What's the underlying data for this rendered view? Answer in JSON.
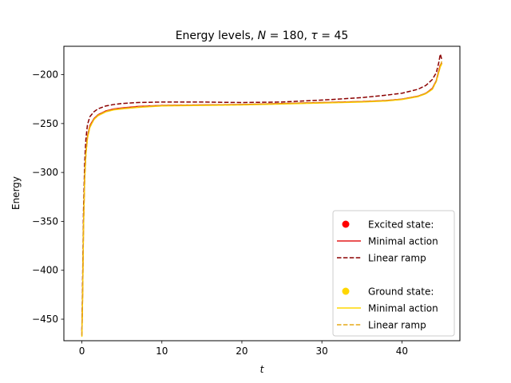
{
  "chart_data": {
    "type": "line",
    "title": "Energy levels, N = 180, τ = 45",
    "title_parts": {
      "prefix": "Energy levels, ",
      "n_sym": "N",
      "n_val": " = 180, ",
      "tau_sym": "τ",
      "tau_val": " = 45"
    },
    "xlabel": "t",
    "ylabel": "Energy",
    "xlim": [
      -2.25,
      47.25
    ],
    "ylim": [
      -472,
      -171
    ],
    "xticks": [
      0,
      10,
      20,
      30,
      40
    ],
    "yticks": [
      -450,
      -400,
      -350,
      -300,
      -250,
      -200
    ],
    "grid": false,
    "legend_position": "lower-right",
    "legend": [
      {
        "kind": "marker",
        "label": "Excited state:",
        "color": "#ff0000"
      },
      {
        "kind": "solid",
        "label": "Minimal action",
        "color": "#e31a1c"
      },
      {
        "kind": "dashed",
        "label": "Linear ramp",
        "color": "#8b0000"
      },
      {
        "kind": "gap",
        "label": ""
      },
      {
        "kind": "marker",
        "label": "Ground state:",
        "color": "#ffd700"
      },
      {
        "kind": "solid",
        "label": "Minimal action",
        "color": "#ffd700"
      },
      {
        "kind": "dashed",
        "label": "Linear ramp",
        "color": "#e6a817"
      }
    ],
    "series": [
      {
        "group": "excited",
        "label": "Minimal action",
        "color": "#e31a1c",
        "style": "solid",
        "x": [
          0,
          0.1,
          0.2,
          0.35,
          0.5,
          0.7,
          1,
          1.5,
          2,
          3,
          4,
          5,
          7,
          10,
          15,
          20,
          25,
          30,
          35,
          38,
          40,
          42,
          43,
          43.8,
          44.3,
          44.6,
          44.8,
          45
        ],
        "y": [
          -466,
          -420,
          -355,
          -305,
          -280,
          -263,
          -252,
          -245,
          -241,
          -237,
          -235,
          -234,
          -232.5,
          -231.5,
          -231,
          -230.5,
          -229.5,
          -228.5,
          -227.5,
          -226.5,
          -225,
          -222,
          -219,
          -214,
          -206,
          -196,
          -190,
          -188
        ]
      },
      {
        "group": "excited",
        "label": "Linear ramp",
        "color": "#8b0000",
        "style": "dashed",
        "x": [
          0,
          0.1,
          0.2,
          0.35,
          0.5,
          0.7,
          1,
          1.5,
          2,
          3,
          4,
          5,
          7,
          10,
          15,
          20,
          25,
          30,
          35,
          38,
          40,
          42,
          43,
          43.8,
          44.3,
          44.6,
          44.8,
          45
        ],
        "y": [
          -462,
          -405,
          -340,
          -290,
          -266,
          -251,
          -243,
          -238,
          -235,
          -232,
          -230.5,
          -229.5,
          -228.5,
          -228,
          -228,
          -228.5,
          -228,
          -226,
          -223.5,
          -221,
          -219,
          -215,
          -211,
          -205,
          -198,
          -188,
          -179,
          -185
        ]
      },
      {
        "group": "ground",
        "label": "Minimal action",
        "color": "#ffd700",
        "style": "solid",
        "x": [
          0,
          0.1,
          0.2,
          0.35,
          0.5,
          0.7,
          1,
          1.5,
          2,
          3,
          4,
          5,
          7,
          10,
          15,
          20,
          25,
          30,
          35,
          38,
          40,
          42,
          43,
          43.8,
          44.3,
          44.6,
          44.8,
          45
        ],
        "y": [
          -468,
          -422,
          -357,
          -307,
          -282,
          -265,
          -254,
          -246,
          -242,
          -238,
          -236,
          -235,
          -233.5,
          -232,
          -231.5,
          -231,
          -230,
          -229,
          -228,
          -227,
          -225.5,
          -222.5,
          -219.5,
          -215,
          -207,
          -198,
          -192,
          -189
        ]
      },
      {
        "group": "ground",
        "label": "Linear ramp",
        "color": "#e6a817",
        "style": "dashed",
        "x": [
          0,
          0.1,
          0.2,
          0.35,
          0.5,
          0.7,
          1,
          1.5,
          2,
          3,
          4,
          5,
          7,
          10,
          15,
          20,
          25,
          30,
          35,
          38,
          40,
          42,
          43,
          43.8,
          44.3,
          44.6,
          44.8,
          45
        ],
        "y": [
          -467,
          -421,
          -356,
          -306,
          -281,
          -264,
          -253,
          -245.5,
          -241.5,
          -237.5,
          -235.5,
          -234.5,
          -233,
          -231.5,
          -231,
          -230.5,
          -229.5,
          -228.5,
          -227.5,
          -226.5,
          -225,
          -222,
          -219,
          -214.5,
          -206.5,
          -197,
          -191,
          -186
        ]
      }
    ]
  }
}
